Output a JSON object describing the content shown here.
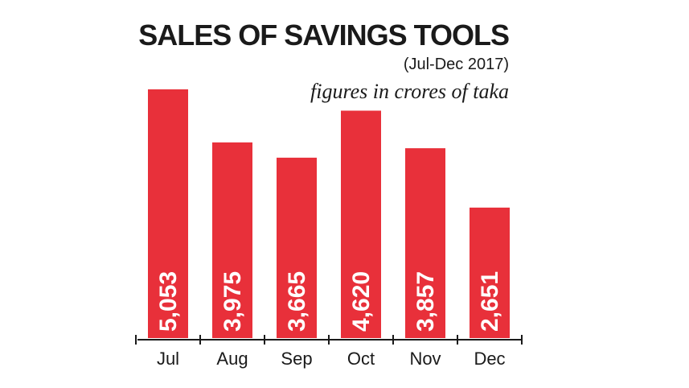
{
  "chart_data": {
    "type": "bar",
    "title": "SALES OF SAVINGS TOOLS",
    "subtitle": "(Jul-Dec 2017)",
    "unit_note": "figures in crores of taka",
    "categories": [
      "Jul",
      "Aug",
      "Sep",
      "Oct",
      "Nov",
      "Dec"
    ],
    "values": [
      5053,
      3975,
      3665,
      4620,
      3857,
      2651
    ],
    "value_labels": [
      "5,053",
      "3,975",
      "3,665",
      "4,620",
      "3,857",
      "2,651"
    ],
    "bar_color": "#e8303a",
    "axis_color": "#1a1a1a",
    "ylim": [
      0,
      5053
    ],
    "grid": false,
    "legend": "none"
  }
}
